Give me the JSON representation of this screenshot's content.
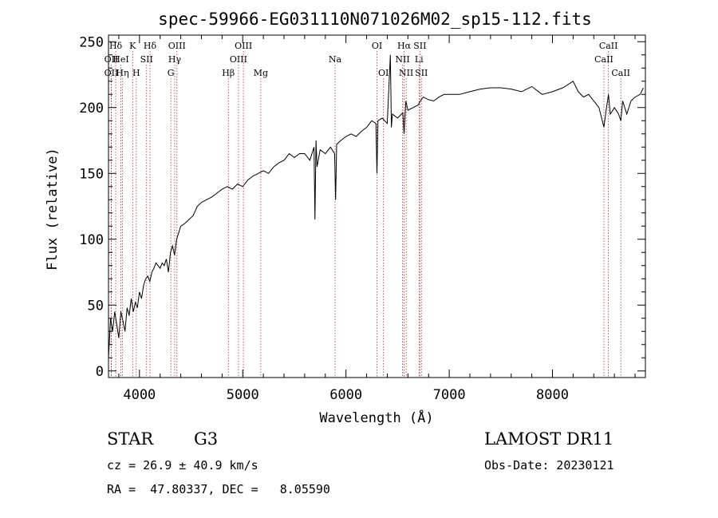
{
  "chart_data": {
    "type": "line",
    "title": "spec-59966-EG031110N071026M02_sp15-112.fits",
    "xlabel": "Wavelength (Å)",
    "ylabel": "Flux (relative)",
    "xlim": [
      3700,
      8900
    ],
    "ylim": [
      -5,
      255
    ],
    "xticks": [
      4000,
      5000,
      6000,
      7000,
      8000
    ],
    "yticks": [
      0,
      50,
      100,
      150,
      200,
      250
    ],
    "grid": false,
    "series": [
      {
        "x": [
          3700,
          3720,
          3740,
          3760,
          3780,
          3800,
          3820,
          3840,
          3860,
          3880,
          3900,
          3920,
          3940,
          3960,
          3980,
          4000,
          4020,
          4040,
          4060,
          4080,
          4100,
          4120,
          4140,
          4160,
          4180,
          4200,
          4220,
          4240,
          4260,
          4280,
          4300,
          4320,
          4340,
          4360,
          4380,
          4400,
          4440,
          4480,
          4520,
          4560,
          4600,
          4650,
          4700,
          4750,
          4800,
          4850,
          4900,
          4950,
          5000,
          5050,
          5100,
          5150,
          5200,
          5250,
          5300,
          5350,
          5400,
          5450,
          5500,
          5550,
          5600,
          5650,
          5690,
          5700,
          5710,
          5720,
          5750,
          5800,
          5850,
          5890,
          5900,
          5910,
          5950,
          6000,
          6050,
          6100,
          6150,
          6200,
          6250,
          6290,
          6300,
          6310,
          6350,
          6400,
          6430,
          6440,
          6450,
          6500,
          6550,
          6563,
          6580,
          6600,
          6650,
          6700,
          6720,
          6750,
          6800,
          6850,
          6900,
          6950,
          7000,
          7100,
          7200,
          7300,
          7400,
          7500,
          7600,
          7700,
          7800,
          7900,
          8000,
          8100,
          8200,
          8250,
          8300,
          8350,
          8400,
          8450,
          8498,
          8520,
          8542,
          8560,
          8600,
          8640,
          8662,
          8680,
          8720,
          8760,
          8800,
          8850,
          8880
        ],
        "values": [
          10,
          40,
          30,
          45,
          35,
          25,
          45,
          38,
          30,
          48,
          42,
          55,
          45,
          52,
          48,
          60,
          55,
          65,
          70,
          72,
          68,
          75,
          78,
          82,
          80,
          78,
          82,
          80,
          85,
          75,
          90,
          95,
          88,
          100,
          105,
          110,
          112,
          115,
          118,
          125,
          128,
          130,
          132,
          135,
          138,
          140,
          138,
          142,
          140,
          145,
          148,
          150,
          152,
          150,
          155,
          158,
          160,
          165,
          162,
          165,
          165,
          160,
          170,
          115,
          175,
          155,
          168,
          165,
          170,
          165,
          130,
          172,
          175,
          178,
          180,
          178,
          182,
          185,
          190,
          188,
          150,
          190,
          192,
          188,
          240,
          185,
          195,
          192,
          196,
          180,
          205,
          198,
          200,
          202,
          205,
          208,
          206,
          205,
          208,
          210,
          210,
          210,
          212,
          214,
          215,
          215,
          214,
          212,
          216,
          210,
          212,
          215,
          220,
          212,
          208,
          210,
          205,
          200,
          185,
          198,
          210,
          195,
          200,
          195,
          190,
          205,
          195,
          205,
          208,
          210,
          215
        ]
      }
    ],
    "line_markers": [
      {
        "name": "Hδ",
        "wl": 3770,
        "row": 0
      },
      {
        "name": "OII",
        "wl": 3727,
        "row": 1
      },
      {
        "name": "OII",
        "wl": 3727,
        "row": 2
      },
      {
        "name": "Hη",
        "wl": 3835,
        "row": 2
      },
      {
        "name": "HeI",
        "wl": 3820,
        "row": 1
      },
      {
        "name": "K",
        "wl": 3934,
        "row": 0
      },
      {
        "name": "H",
        "wl": 3969,
        "row": 2
      },
      {
        "name": "SII",
        "wl": 4069,
        "row": 1
      },
      {
        "name": "Hδ",
        "wl": 4102,
        "row": 0
      },
      {
        "name": "OIII",
        "wl": 4363,
        "row": 0
      },
      {
        "name": "Hγ",
        "wl": 4341,
        "row": 1
      },
      {
        "name": "G",
        "wl": 4304,
        "row": 2
      },
      {
        "name": "Hβ",
        "wl": 4861,
        "row": 2
      },
      {
        "name": "OIII",
        "wl": 5007,
        "row": 0
      },
      {
        "name": "OIII",
        "wl": 4959,
        "row": 1
      },
      {
        "name": "Mg",
        "wl": 5175,
        "row": 2
      },
      {
        "name": "Na",
        "wl": 5894,
        "row": 1
      },
      {
        "name": "OI",
        "wl": 6300,
        "row": 0
      },
      {
        "name": "OI",
        "wl": 6363,
        "row": 2
      },
      {
        "name": "Hα",
        "wl": 6563,
        "row": 0
      },
      {
        "name": "SII",
        "wl": 6716,
        "row": 0
      },
      {
        "name": "NII",
        "wl": 6548,
        "row": 1
      },
      {
        "name": "Li",
        "wl": 6708,
        "row": 1
      },
      {
        "name": "NII",
        "wl": 6583,
        "row": 2
      },
      {
        "name": "SII",
        "wl": 6731,
        "row": 2
      },
      {
        "name": "CaII",
        "wl": 8542,
        "row": 0
      },
      {
        "name": "CaII",
        "wl": 8498,
        "row": 1
      },
      {
        "name": "CaII",
        "wl": 8662,
        "row": 2
      }
    ]
  },
  "info": {
    "object_class": "STAR",
    "subclass": "G3",
    "survey": "LAMOST DR11",
    "cz": "cz = 26.9 ± 40.9 km/s",
    "obs_date": "Obs-Date: 20230121",
    "radec": "RA =  47.80337, DEC =   8.05590"
  }
}
